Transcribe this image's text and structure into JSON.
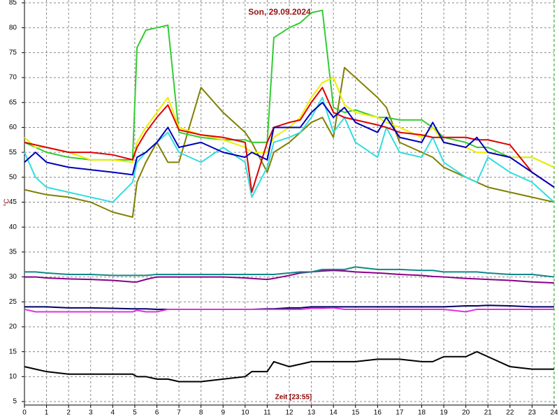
{
  "chart_data": {
    "type": "line",
    "title": "Son, 29.09.2024",
    "x_label": "Zeit [23:55]",
    "y_label": "°C",
    "x": [
      0,
      0.5,
      1,
      2,
      3,
      4,
      4.9,
      5.1,
      5.5,
      6,
      6.5,
      7,
      8,
      9,
      10,
      10.3,
      11,
      11.3,
      12,
      12.5,
      13,
      13.5,
      14,
      14.5,
      15,
      16,
      16.4,
      17,
      18,
      18.5,
      19,
      20,
      20.5,
      21,
      22,
      23,
      24
    ],
    "xlim": [
      0,
      24
    ],
    "xticks": [
      0,
      1,
      2,
      3,
      4,
      5,
      6,
      7,
      8,
      9,
      10,
      11,
      12,
      13,
      14,
      15,
      16,
      17,
      18,
      19,
      20,
      21,
      22,
      23,
      24
    ],
    "ylim": [
      5,
      85
    ],
    "yticks": [
      5,
      10,
      15,
      20,
      25,
      30,
      35,
      40,
      45,
      50,
      55,
      60,
      65,
      70,
      75,
      80,
      85
    ],
    "grid": true,
    "series": [
      {
        "color": "#000000",
        "values": [
          12,
          11.5,
          11,
          10.5,
          10.5,
          10.5,
          10.5,
          10,
          10,
          9.5,
          9.5,
          9,
          9,
          9.5,
          10,
          11,
          11,
          13,
          12,
          12.5,
          13,
          13,
          13,
          13,
          13,
          13.5,
          13.5,
          13.5,
          13,
          13,
          14,
          14,
          15,
          14,
          12,
          11.5,
          11.5
        ]
      },
      {
        "color": "#000066",
        "values": [
          24,
          24,
          24,
          23.8,
          23.8,
          23.7,
          23.6,
          23.6,
          23.6,
          23.5,
          23.5,
          23.5,
          23.5,
          23.5,
          23.5,
          23.5,
          23.6,
          23.6,
          23.8,
          23.8,
          24,
          24,
          24,
          24,
          24,
          24,
          24,
          24,
          24,
          24,
          24,
          24.2,
          24.2,
          24.3,
          24.2,
          24,
          24
        ]
      },
      {
        "color": "#dd33dd",
        "values": [
          23.5,
          23,
          23,
          23,
          23,
          23,
          23,
          23.3,
          23,
          23,
          23.5,
          23.5,
          23.5,
          23.5,
          23.5,
          23.5,
          23.5,
          23.5,
          23.5,
          23.5,
          23.7,
          23.7,
          23.8,
          23.5,
          23.5,
          23.5,
          23.5,
          23.5,
          23.5,
          23.5,
          23.5,
          23,
          23.5,
          23.5,
          23.5,
          23.5,
          23.5
        ]
      },
      {
        "color": "#880088",
        "values": [
          30,
          30,
          29.8,
          29.6,
          29.5,
          29.3,
          29,
          29,
          29.5,
          30,
          30,
          30,
          30,
          30,
          29.8,
          29.7,
          29.5,
          29.7,
          30.3,
          30.8,
          31,
          31.2,
          31.3,
          31.2,
          31,
          30.8,
          30.7,
          30.5,
          30.3,
          30.1,
          30,
          29.7,
          29.6,
          29.5,
          29.3,
          29,
          28.8
        ]
      },
      {
        "color": "#118888",
        "values": [
          31,
          31,
          30.8,
          30.5,
          30.5,
          30.3,
          30.3,
          30.3,
          30.3,
          30.5,
          30.5,
          30.5,
          30.5,
          30.5,
          30.5,
          30.5,
          30.5,
          30.5,
          30.8,
          31,
          31,
          31.5,
          31.5,
          31.5,
          32,
          31.5,
          31.5,
          31.5,
          31.3,
          31.3,
          31,
          31,
          31,
          30.8,
          30.5,
          30.5,
          30
        ]
      },
      {
        "color": "#808000",
        "values": [
          47.5,
          47,
          46.5,
          46,
          45,
          43,
          42,
          49,
          53,
          57,
          53,
          53,
          68,
          63,
          59,
          57,
          51,
          55,
          57,
          59,
          61,
          62,
          58,
          72,
          70,
          66,
          64,
          57,
          55,
          54,
          52,
          50,
          49,
          48,
          47,
          46,
          45
        ]
      },
      {
        "color": "#33cc33",
        "values": [
          57,
          56,
          55,
          54,
          53.5,
          53.5,
          53.5,
          76,
          79.5,
          80,
          80.5,
          59,
          58,
          57.5,
          57.5,
          57,
          57,
          78,
          80,
          81,
          83,
          83.5,
          64,
          63,
          63.5,
          62,
          62,
          61.5,
          61.5,
          60,
          58,
          57,
          56,
          56,
          54,
          54,
          52
        ]
      },
      {
        "color": "#eeee00",
        "values": [
          58,
          56,
          56,
          55,
          53.5,
          53.5,
          53,
          57,
          60,
          63,
          66,
          60,
          58.5,
          57.5,
          56,
          55,
          55,
          58,
          60,
          62,
          66,
          69,
          70,
          64.5,
          63,
          62,
          61,
          60,
          58,
          60,
          57,
          56,
          55,
          55,
          54,
          54,
          52
        ]
      },
      {
        "color": "#33dddd",
        "values": [
          55,
          50,
          48,
          47,
          46,
          45,
          49,
          53,
          55,
          57,
          59,
          55,
          53,
          56,
          53,
          46,
          52,
          57,
          58,
          59,
          62,
          66,
          59,
          62,
          57,
          54,
          60,
          55,
          54,
          58,
          53,
          50,
          49,
          54,
          51,
          49,
          45
        ]
      },
      {
        "color": "#dd0000",
        "values": [
          57,
          56.5,
          56,
          55,
          55,
          54.5,
          53.5,
          56,
          59,
          62,
          64.5,
          59.5,
          58.5,
          58,
          57,
          47,
          57,
          60,
          61,
          61.5,
          65,
          68,
          63,
          62,
          61.5,
          60.5,
          60,
          59,
          58.5,
          58,
          58,
          58,
          57.5,
          57.5,
          56.5,
          51,
          48
        ]
      },
      {
        "color": "#0000bb",
        "values": [
          53,
          55,
          53,
          52,
          51.5,
          51,
          50.5,
          54,
          55,
          57,
          60,
          56,
          57,
          55,
          54,
          55,
          53.5,
          60,
          60,
          60,
          63,
          65,
          62,
          64,
          61,
          59,
          62,
          58,
          57,
          61,
          57,
          56,
          58,
          55,
          54,
          51,
          48
        ]
      }
    ]
  }
}
